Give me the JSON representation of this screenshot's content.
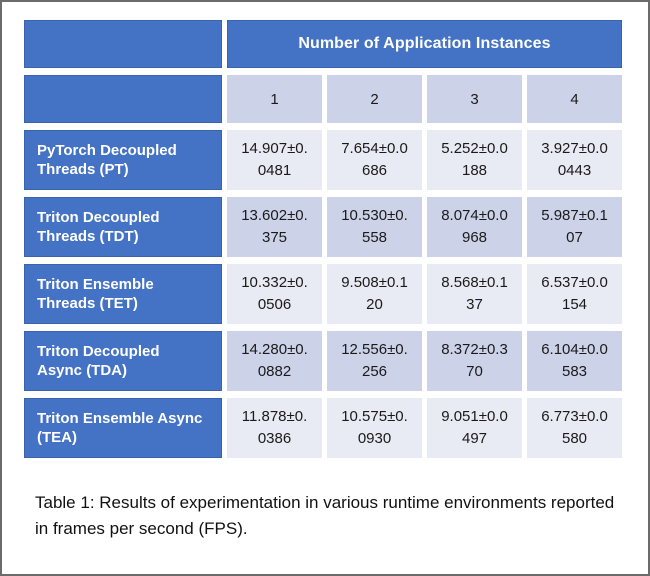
{
  "table": {
    "header": "Number of Application Instances",
    "column_headers": [
      "1",
      "2",
      "3",
      "4"
    ],
    "rows": [
      {
        "label": "PyTorch Decoupled Threads (PT)",
        "values": [
          "14.907±0.0481",
          "7.654±0.0686",
          "5.252±0.0188",
          "3.927±0.00443"
        ]
      },
      {
        "label": "Triton Decoupled Threads (TDT)",
        "values": [
          "13.602±0.375",
          "10.530±0.558",
          "8.074±0.0968",
          "5.987±0.107"
        ]
      },
      {
        "label": "Triton Ensemble Threads (TET)",
        "values": [
          "10.332±0.0506",
          "9.508±0.120",
          "8.568±0.137",
          "6.537±0.0154"
        ]
      },
      {
        "label": "Triton Decoupled Async (TDA)",
        "values": [
          "14.280±0.0882",
          "12.556±0.256",
          "8.372±0.370",
          "6.104±0.0583"
        ]
      },
      {
        "label": "Triton Ensemble Async (TEA)",
        "values": [
          "11.878±0.0386",
          "10.575±0.0930",
          "9.051±0.0497",
          "6.773±0.0580"
        ]
      }
    ],
    "colors": {
      "header_blue": "#4472c4",
      "band_dark": "#ccd3e8",
      "band_light": "#e9ebf4",
      "text": "#1a1a1a",
      "frame_border": "#6b6b6b"
    }
  },
  "caption": "Table 1: Results of experimentation in various runtime environments reported in frames per second (FPS)."
}
